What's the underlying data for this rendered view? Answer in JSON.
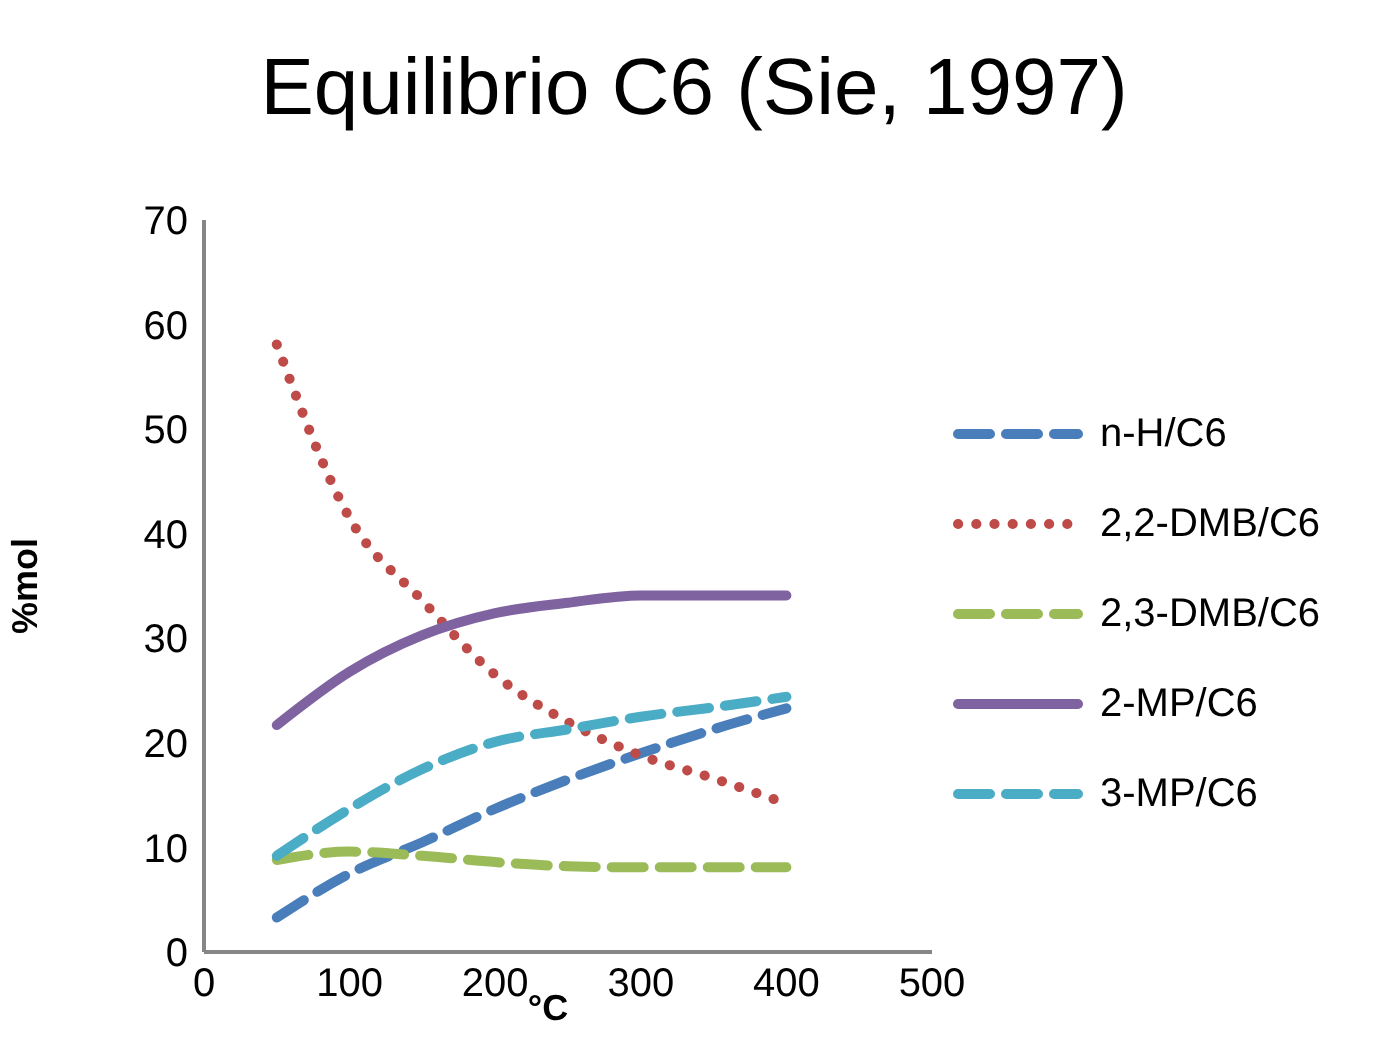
{
  "chart_data": {
    "type": "line",
    "title": "Equilibrio C6  (Sie, 1997)",
    "xlabel": "°C",
    "ylabel": "%mol",
    "x": [
      50,
      100,
      150,
      200,
      250,
      300,
      350,
      400
    ],
    "series": [
      {
        "name": "n-H/C6",
        "color": "#4a7ebb",
        "line_style": "dashed",
        "values": [
          3.3,
          7.5,
          10.5,
          13.7,
          16.5,
          19,
          21.3,
          23.3
        ]
      },
      {
        "name": "2,2-DMB/C6",
        "color": "#be4b48",
        "line_style": "dotted",
        "values": [
          58.1,
          41.5,
          33.6,
          26.5,
          22,
          18.8,
          16.6,
          14.2
        ]
      },
      {
        "name": "2,3-DMB/C6",
        "color": "#9bbb59",
        "line_style": "dashed",
        "values": [
          8.8,
          9.6,
          9.2,
          8.6,
          8.2,
          8.1,
          8.1,
          8.1
        ]
      },
      {
        "name": "2-MP/C6",
        "color": "#7f63a1",
        "line_style": "solid",
        "values": [
          21.7,
          26.8,
          30.3,
          32.4,
          33.4,
          34.1,
          34.1,
          34.1
        ]
      },
      {
        "name": "3-MP/C6",
        "color": "#4bacc6",
        "line_style": "dashed",
        "values": [
          9.2,
          13.7,
          17.5,
          20.1,
          21.3,
          22.5,
          23.4,
          24.4
        ]
      }
    ],
    "xlim": [
      0,
      500
    ],
    "xticks": [
      0,
      100,
      200,
      300,
      400,
      500
    ],
    "ylim": [
      0,
      70
    ],
    "yticks": [
      0,
      10,
      20,
      30,
      40,
      50,
      60,
      70
    ],
    "grid": false,
    "legend": "right",
    "marker": "none"
  }
}
